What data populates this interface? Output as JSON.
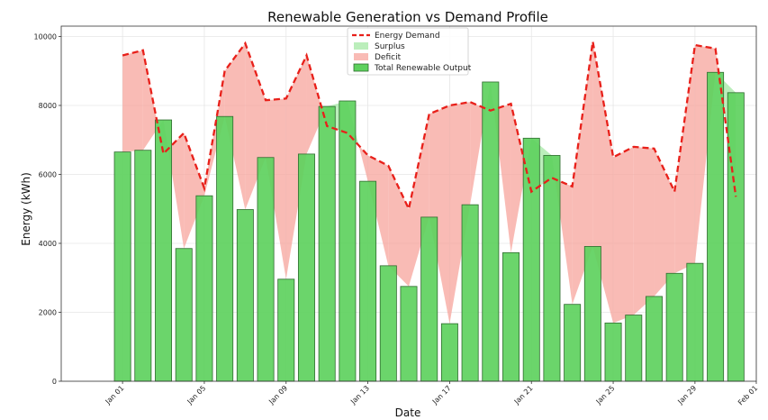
{
  "chart_data": {
    "type": "bar",
    "title": "Renewable Generation vs Demand Profile",
    "xlabel": "Date",
    "ylabel": "Energy (kWh)",
    "ylim": [
      0,
      10300
    ],
    "x_axis": {
      "start": "2023-12-29",
      "end": "2024-02-01"
    },
    "yticks": [
      0,
      2000,
      4000,
      6000,
      8000,
      10000
    ],
    "xticks": [
      {
        "date": "2024-01-01",
        "label": "Jan 01"
      },
      {
        "date": "2024-01-05",
        "label": "Jan 05"
      },
      {
        "date": "2024-01-09",
        "label": "Jan 09"
      },
      {
        "date": "2024-01-13",
        "label": "Jan 13"
      },
      {
        "date": "2024-01-17",
        "label": "Jan 17"
      },
      {
        "date": "2024-01-21",
        "label": "Jan 21"
      },
      {
        "date": "2024-01-25",
        "label": "Jan 25"
      },
      {
        "date": "2024-01-29",
        "label": "Jan 29"
      },
      {
        "date": "2024-02-01",
        "label": "Feb 01"
      }
    ],
    "grid": true,
    "legend_position": "top-center",
    "dates": [
      "2024-01-01",
      "2024-01-02",
      "2024-01-03",
      "2024-01-04",
      "2024-01-05",
      "2024-01-06",
      "2024-01-07",
      "2024-01-08",
      "2024-01-09",
      "2024-01-10",
      "2024-01-11",
      "2024-01-12",
      "2024-01-13",
      "2024-01-14",
      "2024-01-15",
      "2024-01-16",
      "2024-01-17",
      "2024-01-18",
      "2024-01-19",
      "2024-01-20",
      "2024-01-21",
      "2024-01-22",
      "2024-01-23",
      "2024-01-24",
      "2024-01-25",
      "2024-01-26",
      "2024-01-27",
      "2024-01-28",
      "2024-01-29",
      "2024-01-30",
      "2024-01-31"
    ],
    "series": [
      {
        "name": "Total Renewable Output",
        "kind": "bar",
        "color": "#5ed15e",
        "values": [
          6650,
          6700,
          7580,
          3850,
          5380,
          7680,
          4980,
          6490,
          2960,
          6590,
          7970,
          8130,
          5800,
          3350,
          2750,
          4760,
          1670,
          5120,
          8680,
          3730,
          7050,
          6550,
          2230,
          3910,
          1690,
          1920,
          2460,
          3130,
          3420,
          8960,
          8370
        ]
      },
      {
        "name": "Energy Demand",
        "kind": "line",
        "color": "#e8201a",
        "values": [
          9450,
          9600,
          6600,
          7200,
          5600,
          9000,
          9800,
          8150,
          8200,
          9450,
          7400,
          7200,
          6550,
          6250,
          5000,
          7750,
          8000,
          8100,
          7850,
          8050,
          5500,
          5900,
          5650,
          9850,
          6500,
          6800,
          6750,
          5500,
          9750,
          9650,
          5350
        ]
      }
    ],
    "fills": [
      {
        "name": "Surplus",
        "color": "#a4e8a4"
      },
      {
        "name": "Deficit",
        "color": "#f7a49c"
      }
    ],
    "legend": [
      "Energy Demand",
      "Surplus",
      "Deficit",
      "Total Renewable Output"
    ]
  }
}
